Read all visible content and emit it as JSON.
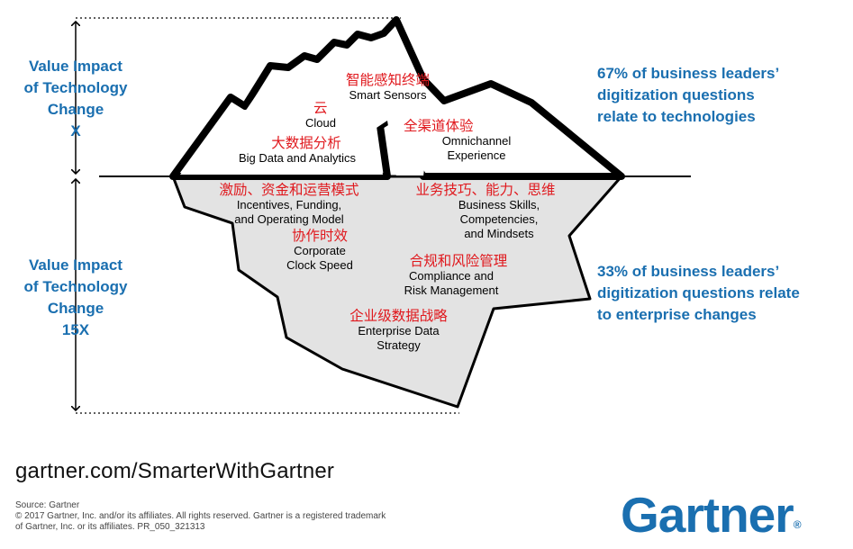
{
  "left_labels": {
    "above": "Value Impact\nof Technology\nChange\nX",
    "below": "Value Impact\nof Technology\nChange\n15X"
  },
  "stats": {
    "top": "67% of business leaders’\ndigitization questions\nrelate to technologies",
    "bottom": "33% of business leaders’\ndigitization questions relate\nto enterprise changes"
  },
  "iceberg": {
    "above_water": [
      {
        "id": "smart-sensors",
        "cn": "智能感知终端",
        "en": "Smart Sensors"
      },
      {
        "id": "cloud",
        "cn": "云",
        "en": "Cloud"
      },
      {
        "id": "big-data",
        "cn": "大数据分析",
        "en": "Big Data and Analytics"
      },
      {
        "id": "omnichannel",
        "cn": "全渠道体验",
        "en": "Omnichannel\nExperience"
      }
    ],
    "below_water": [
      {
        "id": "incentives",
        "cn": "激励、资金和运营模式",
        "en": "Incentives, Funding,\nand Operating Model"
      },
      {
        "id": "business-skills",
        "cn": "业务技巧、能力、思维",
        "en": "Business Skills,\nCompetencies,\nand Mindsets"
      },
      {
        "id": "clock-speed",
        "cn": "协作时效",
        "en": "Corporate\nClock Speed"
      },
      {
        "id": "compliance",
        "cn": "合规和风险管理",
        "en": "Compliance and\nRisk Management"
      },
      {
        "id": "data-strategy",
        "cn": "企业级数据战略",
        "en": "Enterprise Data\nStrategy"
      }
    ]
  },
  "footer": {
    "url": "gartner.com/SmarterWithGartner",
    "source": "Source: Gartner\n© 2017 Gartner, Inc. and/or its affiliates. All rights reserved. Gartner is a registered trademark\nof Gartner, Inc. or its affiliates. PR_050_321313",
    "logo": "Gartner",
    "logo_mark": "®"
  },
  "colors": {
    "accent_blue": "#1a6fb0",
    "annotation_red": "#e0191e",
    "iceberg_underwater": "#e3e3e3",
    "outline": "#000000"
  }
}
